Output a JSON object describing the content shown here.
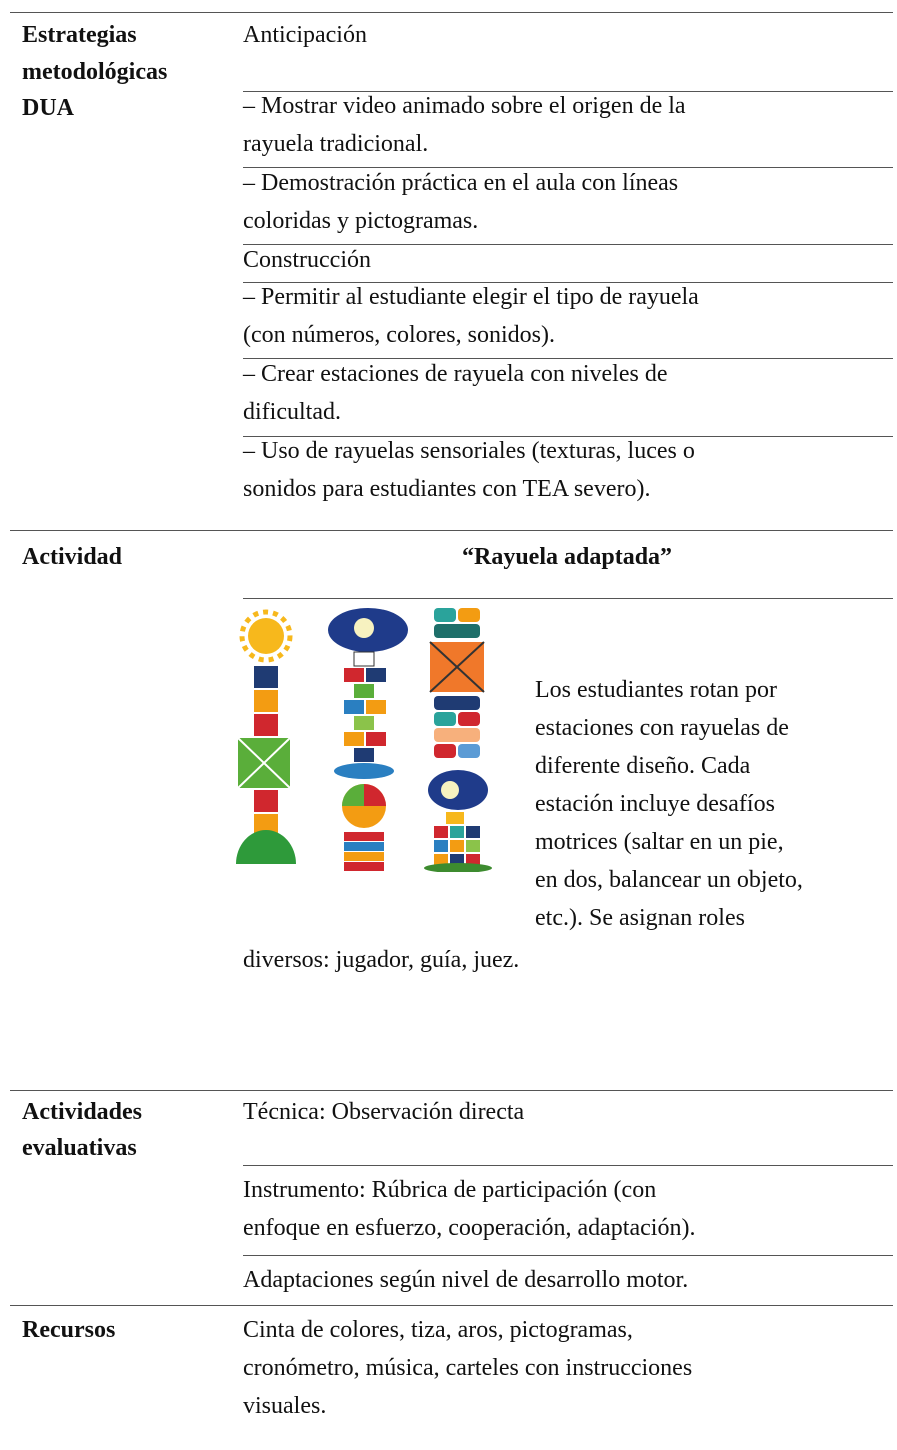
{
  "strategies": {
    "label_lines": [
      "Estrategias",
      "metodológicas",
      "DUA"
    ],
    "cells": [
      [
        "Anticipación"
      ],
      [
        "– Mostrar video animado sobre el origen de la",
        "rayuela tradicional."
      ],
      [
        "– Demostración práctica en el aula con líneas",
        "coloridas y pictogramas."
      ],
      [
        "Construcción"
      ],
      [
        "– Permitir al estudiante elegir el tipo de rayuela",
        "(con números, colores, sonidos)."
      ],
      [
        "– Crear estaciones de rayuela con niveles de",
        "dificultad."
      ],
      [
        "– Uso de rayuelas sensoriales (texturas, luces o",
        "sonidos para estudiantes con TEA severo)."
      ]
    ]
  },
  "activity": {
    "label": "Actividad",
    "title": "“Rayuela adaptada”",
    "description_lines": [
      "Los estudiantes rotan por",
      "estaciones con rayuelas de",
      "diferente diseño. Cada",
      "estación incluye desafíos",
      "motrices (saltar en un pie,",
      "en dos, balancear un objeto,",
      "etc.). Se asignan roles",
      "diversos: jugador, guía, juez."
    ]
  },
  "evaluation": {
    "label_lines": [
      "Actividades",
      "evaluativas"
    ],
    "cells": [
      [
        "Técnica: Observación directa"
      ],
      [
        "Instrumento:  Rúbrica de participación (con",
        "enfoque en esfuerzo, cooperación, adaptación)."
      ],
      [
        "Adaptaciones según nivel de desarrollo motor."
      ]
    ]
  },
  "resources": {
    "label": "Recursos",
    "lines": [
      "Cinta de colores, tiza, aros, pictogramas,",
      "cronómetro, música, carteles con instrucciones",
      "visuales."
    ]
  }
}
